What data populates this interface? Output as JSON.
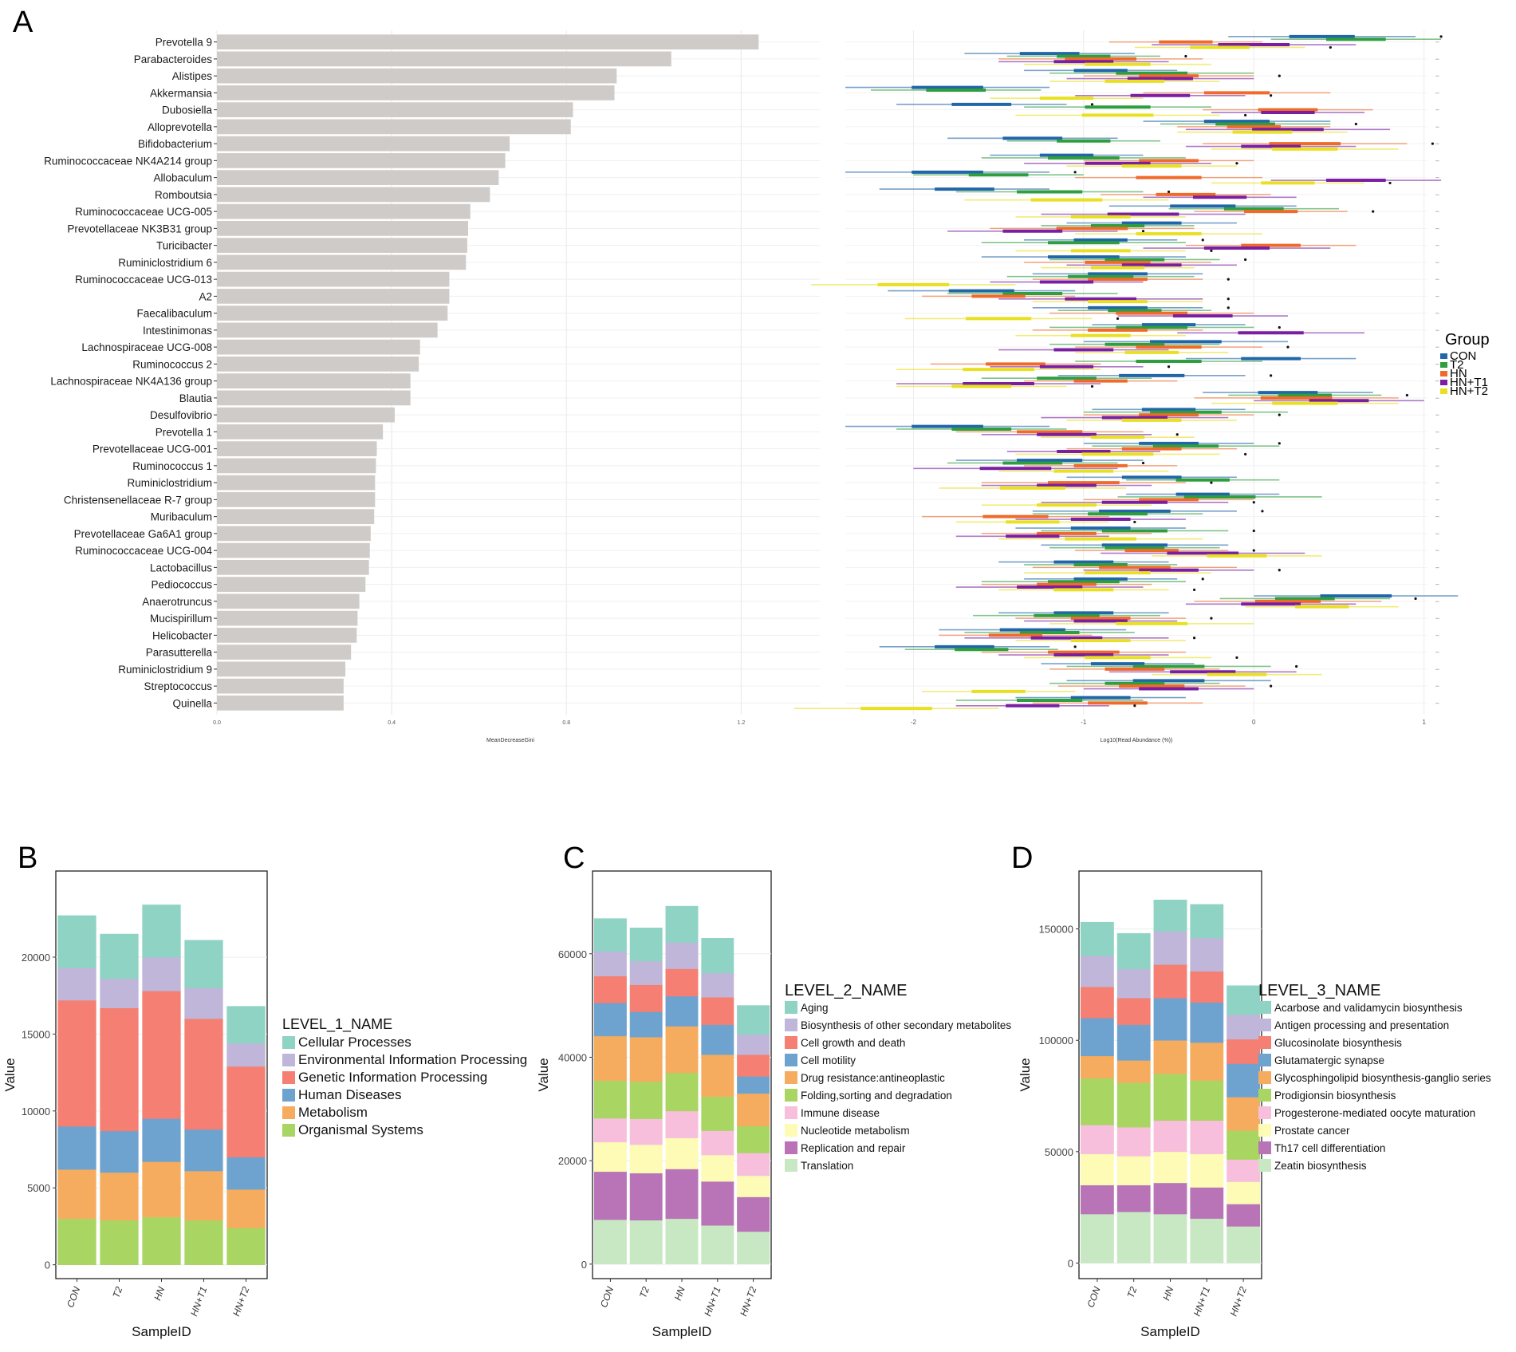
{
  "panel_labels": [
    "A",
    "B",
    "C",
    "D"
  ],
  "colors": {
    "bar_gray": "#cfcbc8",
    "groups": [
      "#2066a8",
      "#2e9e3e",
      "#f06a2a",
      "#7a1fa2",
      "#e8e020"
    ],
    "level1": [
      "#8fd3c4",
      "#bfb6d9",
      "#f47f72",
      "#6fa3cf",
      "#f6ac5f",
      "#a9d563"
    ],
    "level2": [
      "#8fd3c4",
      "#bfb6d9",
      "#f47f72",
      "#6fa3cf",
      "#f6ac5f",
      "#a9d563",
      "#f7bfdc",
      "#fdfbb5",
      "#b874b7",
      "#c7e8c3"
    ],
    "level3": [
      "#8fd3c4",
      "#bfb6d9",
      "#f47f72",
      "#6fa3cf",
      "#f6ac5f",
      "#a9d563",
      "#f7bfdc",
      "#fdfbb5",
      "#b874b7",
      "#c7e8c3"
    ]
  },
  "chart_data": [
    {
      "id": "A-importance",
      "type": "bar",
      "orientation": "horizontal",
      "title": "",
      "xlabel": "MeanDecreaseGini",
      "ylabel": "",
      "xlim": [
        0,
        1.38
      ],
      "xticks": [
        0,
        0.4,
        0.8,
        1.2
      ],
      "xtick_labels": [
        "0.0",
        "0.4",
        "0.8",
        "1.2"
      ],
      "categories": [
        "Prevotella 9",
        "Parabacteroides",
        "Alistipes",
        "Akkermansia",
        "Dubosiella",
        "Alloprevotella",
        "Bifidobacterium",
        "Ruminococcaceae NK4A214 group",
        "Allobaculum",
        "Romboutsia",
        "Ruminococcaceae UCG-005",
        "Prevotellaceae NK3B31 group",
        "Turicibacter",
        "Ruminiclostridium 6",
        "Ruminococcaceae UCG-013",
        "A2",
        "Faecalibaculum",
        "Intestinimonas",
        "Lachnospiraceae UCG-008",
        "Ruminococcus 2",
        "Lachnospiraceae NK4A136 group",
        "Blautia",
        "Desulfovibrio",
        "Prevotella 1",
        "Prevotellaceae UCG-001",
        "Ruminococcus 1",
        "Ruminiclostridium",
        "Christensenellaceae R-7 group",
        "Muribaculum",
        "Prevotellaceae Ga6A1 group",
        "Ruminococcaceae UCG-004",
        "Lactobacillus",
        "Pediococcus",
        "Anaerotruncus",
        "Mucispirillum",
        "Helicobacter",
        "Parasutterella",
        "Ruminiclostridium 9",
        "Streptococcus",
        "Quinella"
      ],
      "values": [
        1.24,
        1.04,
        0.915,
        0.91,
        0.815,
        0.81,
        0.67,
        0.66,
        0.645,
        0.625,
        0.58,
        0.575,
        0.573,
        0.57,
        0.532,
        0.532,
        0.528,
        0.505,
        0.465,
        0.462,
        0.443,
        0.443,
        0.407,
        0.38,
        0.366,
        0.364,
        0.362,
        0.362,
        0.36,
        0.352,
        0.35,
        0.348,
        0.34,
        0.326,
        0.322,
        0.32,
        0.307,
        0.294,
        0.29,
        0.29
      ]
    },
    {
      "id": "A-abundance",
      "type": "scatter",
      "title": "",
      "xlabel": "Log10(Read Abundance (%))",
      "xlim": [
        -2.4,
        1.02
      ],
      "xticks": [
        -2,
        -1,
        0,
        1
      ],
      "xtick_labels": [
        "-2",
        "-1",
        "0",
        "1"
      ],
      "legend_title": "Group",
      "legend_position": "right",
      "series_names": [
        "CON",
        "T2",
        "HN",
        "HN+T1",
        "HN+T2"
      ],
      "medians": [
        [
          0.4,
          0.6,
          -0.4,
          0.0,
          -0.2
        ],
        [
          -1.2,
          -1.0,
          -0.9,
          -1.0,
          -0.8
        ],
        [
          -0.9,
          -0.6,
          -0.5,
          -0.55,
          -0.7
        ],
        [
          -1.8,
          -1.75,
          -0.1,
          -0.55,
          -1.1
        ],
        [
          -1.6,
          -0.8,
          0.2,
          0.2,
          -0.8
        ],
        [
          -0.1,
          -0.05,
          0.0,
          0.2,
          0.05
        ],
        [
          -1.3,
          -1.0,
          0.3,
          0.1,
          0.3
        ],
        [
          -1.1,
          -1.0,
          -0.5,
          -0.8,
          -0.6
        ],
        [
          -1.8,
          -1.5,
          -0.5,
          0.6,
          0.2
        ],
        [
          -1.7,
          -1.2,
          -0.4,
          -0.2,
          -1.1
        ],
        [
          -0.3,
          0.0,
          0.1,
          -0.65,
          -0.9
        ],
        [
          -0.6,
          -0.8,
          -0.95,
          -1.3,
          -0.5
        ],
        [
          -0.9,
          -1.0,
          0.1,
          -0.1,
          -0.9
        ],
        [
          -1.0,
          -0.7,
          -0.8,
          -0.6,
          -0.8
        ],
        [
          -0.8,
          -0.9,
          -0.8,
          -1.1,
          -2.0
        ],
        [
          -1.6,
          -1.3,
          -1.5,
          -0.9,
          -0.8
        ],
        [
          -0.8,
          -0.7,
          -0.6,
          -0.3,
          -1.5
        ],
        [
          -0.5,
          -0.6,
          -0.8,
          0.1,
          -0.9
        ],
        [
          -0.4,
          -0.7,
          -0.5,
          -1.0,
          -0.6
        ],
        [
          0.1,
          -0.5,
          -1.4,
          -1.1,
          -1.5
        ],
        [
          -0.6,
          -1.1,
          -0.9,
          -1.5,
          -1.6
        ],
        [
          0.2,
          0.3,
          0.25,
          0.5,
          0.3
        ],
        [
          -0.5,
          -0.4,
          -0.5,
          -0.7,
          -0.6
        ],
        [
          -1.8,
          -1.6,
          -1.2,
          -1.1,
          -0.8
        ],
        [
          -0.5,
          -0.4,
          -0.6,
          -1.0,
          -0.8
        ],
        [
          -1.2,
          -1.3,
          -0.9,
          -1.4,
          -1.0
        ],
        [
          -0.6,
          -0.3,
          -1.0,
          -1.1,
          -1.3
        ],
        [
          -0.3,
          -0.2,
          -0.5,
          -0.7,
          -1.1
        ],
        [
          -0.7,
          -0.8,
          -1.4,
          -0.9,
          -1.3
        ],
        [
          -0.9,
          -0.7,
          -1.1,
          -1.3,
          -0.9
        ],
        [
          -0.7,
          -0.7,
          -0.6,
          -0.3,
          -0.1
        ],
        [
          -1.0,
          -0.9,
          -0.7,
          -0.5,
          -0.8
        ],
        [
          -0.9,
          -1.0,
          -1.1,
          -1.2,
          -1.0
        ],
        [
          0.6,
          0.3,
          0.2,
          0.1,
          0.4
        ],
        [
          -1.0,
          -1.1,
          -0.9,
          -0.9,
          -0.6
        ],
        [
          -1.3,
          -1.2,
          -1.4,
          -1.1,
          -0.9
        ],
        [
          -1.7,
          -1.6,
          -1.0,
          -1.0,
          -0.8
        ],
        [
          -0.8,
          -0.5,
          -0.7,
          -0.3,
          -0.1
        ],
        [
          -0.5,
          -0.7,
          -0.6,
          -0.5,
          -1.5
        ],
        [
          -0.9,
          -1.2,
          -0.8,
          -1.3,
          -2.1
        ]
      ]
    },
    {
      "id": "B",
      "type": "bar",
      "stacked": true,
      "title": "",
      "xlabel": "SampleID",
      "ylabel": "Value",
      "ylim": [
        -900,
        25600
      ],
      "yticks": [
        0,
        5000,
        10000,
        15000,
        20000
      ],
      "ytick_labels": [
        "0",
        "5000",
        "10000",
        "15000",
        "20000"
      ],
      "categories": [
        "CON",
        "T2",
        "HN",
        "HN+T1",
        "HN+T2"
      ],
      "legend_title": "LEVEL_1_NAME",
      "legend_position": "right",
      "series": [
        {
          "name": "Organismal Systems",
          "values": [
            3000,
            2900,
            3100,
            2900,
            2400
          ]
        },
        {
          "name": "Metabolism",
          "values": [
            3200,
            3100,
            3600,
            3200,
            2500
          ]
        },
        {
          "name": "Human Diseases",
          "values": [
            2800,
            2700,
            2800,
            2700,
            2100
          ]
        },
        {
          "name": "Genetic Information Processing",
          "values": [
            8200,
            8000,
            8300,
            7200,
            5900
          ]
        },
        {
          "name": "Environmental Information Processing",
          "values": [
            2100,
            1900,
            2200,
            2000,
            1500
          ]
        },
        {
          "name": "Cellular Processes",
          "values": [
            3400,
            2900,
            3400,
            3100,
            2400
          ]
        }
      ]
    },
    {
      "id": "C",
      "type": "bar",
      "stacked": true,
      "title": "",
      "xlabel": "SampleID",
      "ylabel": "Value",
      "ylim": [
        -2800,
        76000
      ],
      "yticks": [
        0,
        20000,
        40000,
        60000
      ],
      "ytick_labels": [
        "0",
        "20000",
        "40000",
        "60000"
      ],
      "categories": [
        "CON",
        "T2",
        "HN",
        "HN+T1",
        "HN+T2"
      ],
      "legend_title": "LEVEL_2_NAME",
      "legend_position": "right",
      "series": [
        {
          "name": "Translation",
          "values": [
            8600,
            8500,
            8800,
            7500,
            6300
          ]
        },
        {
          "name": "Replication and repair",
          "values": [
            9300,
            9100,
            9600,
            8500,
            6700
          ]
        },
        {
          "name": "Nucleotide metabolism",
          "values": [
            5700,
            5500,
            6000,
            5100,
            4100
          ]
        },
        {
          "name": "Immune disease",
          "values": [
            4600,
            5000,
            5200,
            4700,
            4400
          ]
        },
        {
          "name": "Folding,sorting and degradation",
          "values": [
            7300,
            7200,
            7400,
            6600,
            5200
          ]
        },
        {
          "name": "Drug resistance:antineoplastic",
          "values": [
            8600,
            8600,
            9000,
            8100,
            6300
          ]
        },
        {
          "name": "Cell motility",
          "values": [
            6400,
            4900,
            5800,
            5800,
            3300
          ]
        },
        {
          "name": "Cell growth and death",
          "values": [
            5200,
            5200,
            5300,
            5300,
            4200
          ]
        },
        {
          "name": "Biosynthesis of other secondary metabolites",
          "values": [
            4800,
            4600,
            5100,
            4700,
            3900
          ]
        },
        {
          "name": "Aging",
          "values": [
            6300,
            6400,
            7000,
            6700,
            5600
          ]
        }
      ]
    },
    {
      "id": "D",
      "type": "bar",
      "stacked": true,
      "title": "",
      "xlabel": "SampleID",
      "ylabel": "Value",
      "ylim": [
        -7000,
        176000
      ],
      "yticks": [
        0,
        50000,
        100000,
        150000
      ],
      "ytick_labels": [
        "0",
        "50000",
        "100000",
        "150000"
      ],
      "categories": [
        "CON",
        "T2",
        "HN",
        "HN+T1",
        "HN+T2"
      ],
      "legend_title": "LEVEL_3_NAME",
      "legend_position": "right",
      "series": [
        {
          "name": "Zeatin biosynthesis",
          "values": [
            22000,
            23000,
            22000,
            20000,
            16500
          ]
        },
        {
          "name": "Th17 cell differentiation",
          "values": [
            13000,
            12000,
            14000,
            14000,
            10000
          ]
        },
        {
          "name": "Prostate cancer",
          "values": [
            14000,
            13000,
            14000,
            15000,
            10000
          ]
        },
        {
          "name": "Progesterone-mediated oocyte maturation",
          "values": [
            13000,
            13000,
            14000,
            15000,
            10000
          ]
        },
        {
          "name": "Prodigionsin biosynthesis",
          "values": [
            21000,
            20000,
            21000,
            18000,
            13000
          ]
        },
        {
          "name": "Glycosphingolipid biosynthesis-ganglio series",
          "values": [
            10000,
            10000,
            15000,
            17000,
            15000
          ]
        },
        {
          "name": "Glutamatergic synapse",
          "values": [
            17000,
            16000,
            19000,
            18000,
            15000
          ]
        },
        {
          "name": "Glucosinolate biosynthesis",
          "values": [
            14000,
            12000,
            15000,
            14000,
            11000
          ]
        },
        {
          "name": "Antigen processing and presentation",
          "values": [
            14000,
            13000,
            15000,
            15000,
            11000
          ]
        },
        {
          "name": "Acarbose and validamycin biosynthesis",
          "values": [
            15000,
            16000,
            14000,
            15000,
            13000
          ]
        }
      ]
    }
  ]
}
